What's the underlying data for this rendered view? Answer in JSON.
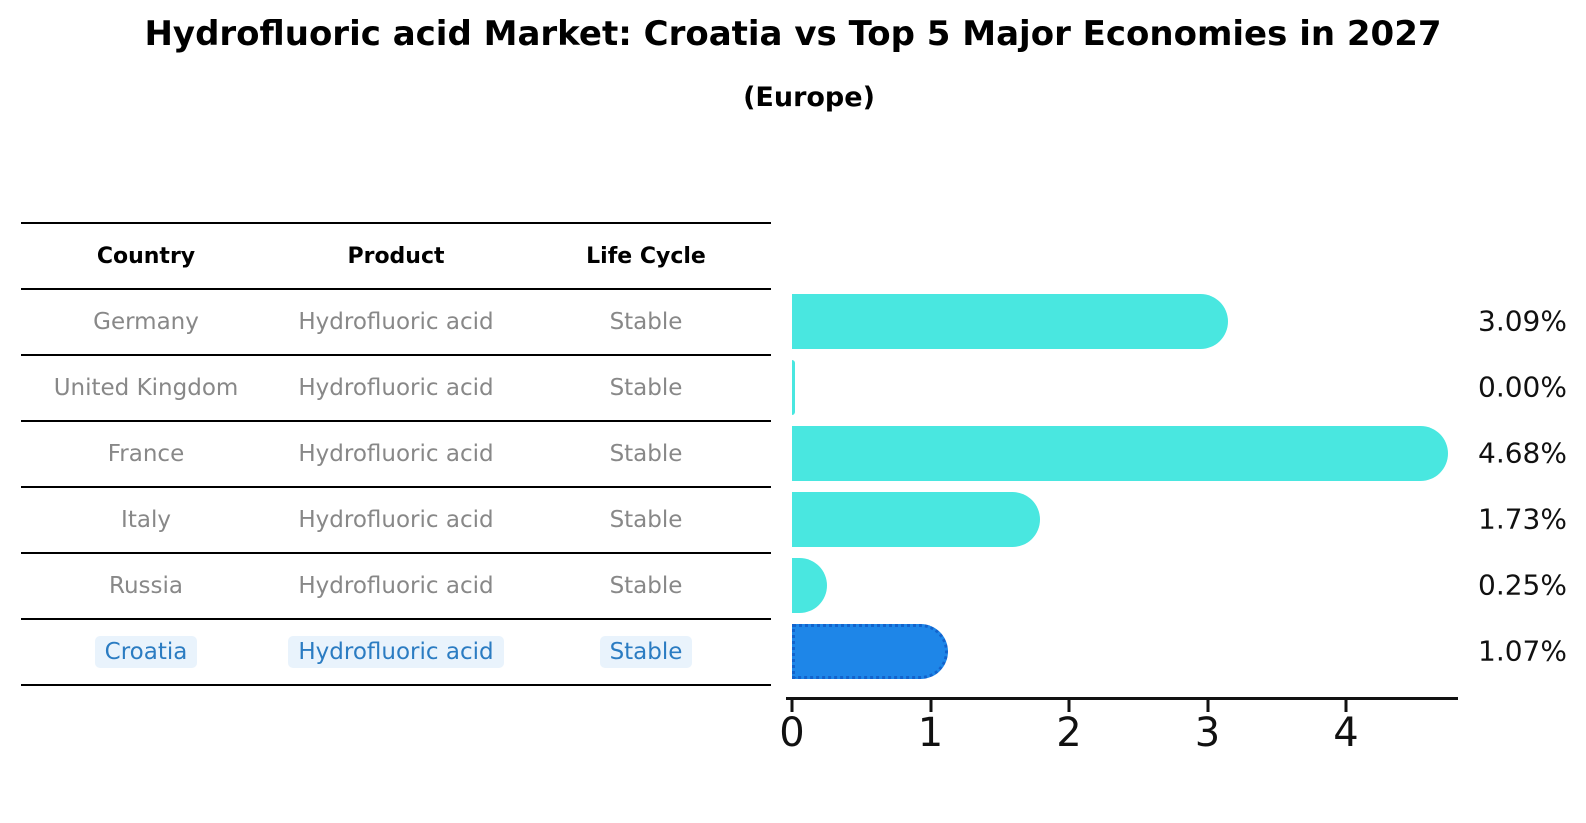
{
  "title": "Hydrofluoric acid Market: Croatia vs Top 5 Major Economies in 2027",
  "subtitle": "(Europe)",
  "table": {
    "headers": [
      "Country",
      "Product",
      "Life Cycle"
    ],
    "rows": [
      {
        "cells": [
          "Germany",
          "Hydrofluoric acid",
          "Stable"
        ],
        "highlighted": false
      },
      {
        "cells": [
          "United Kingdom",
          "Hydrofluoric acid",
          "Stable"
        ],
        "highlighted": false
      },
      {
        "cells": [
          "France",
          "Hydrofluoric acid",
          "Stable"
        ],
        "highlighted": false
      },
      {
        "cells": [
          "Italy",
          "Hydrofluoric acid",
          "Stable"
        ],
        "highlighted": false
      },
      {
        "cells": [
          "Russia",
          "Hydrofluoric acid",
          "Stable"
        ],
        "highlighted": false
      },
      {
        "cells": [
          "Croatia",
          "Hydrofluoric acid",
          "Stable"
        ],
        "highlighted": true
      }
    ]
  },
  "chart_data": {
    "type": "bar",
    "orientation": "horizontal",
    "title": "Hydrofluoric acid Market: Croatia vs Top 5 Major Economies in 2027",
    "subtitle": "(Europe)",
    "categories": [
      "Germany",
      "United Kingdom",
      "France",
      "Italy",
      "Russia",
      "Croatia"
    ],
    "values": [
      3.09,
      0.0,
      4.68,
      1.73,
      0.25,
      1.07
    ],
    "value_labels": [
      "3.09%",
      "0.00%",
      "4.68%",
      "1.73%",
      "0.25%",
      "1.07%"
    ],
    "xlabel": "",
    "ylabel": "",
    "xticks": [
      0,
      1,
      2,
      3,
      4
    ],
    "xlim": [
      0,
      4.9
    ],
    "grid": false,
    "legend": "none",
    "highlight_index": 5,
    "colors": {
      "bar": "#49e7e0",
      "highlight_bar": "#1e86e8",
      "highlight_border": "#1263cc",
      "highlight_text": "#2b7cc2",
      "row_text": "#888888",
      "axis": "#111111"
    }
  }
}
